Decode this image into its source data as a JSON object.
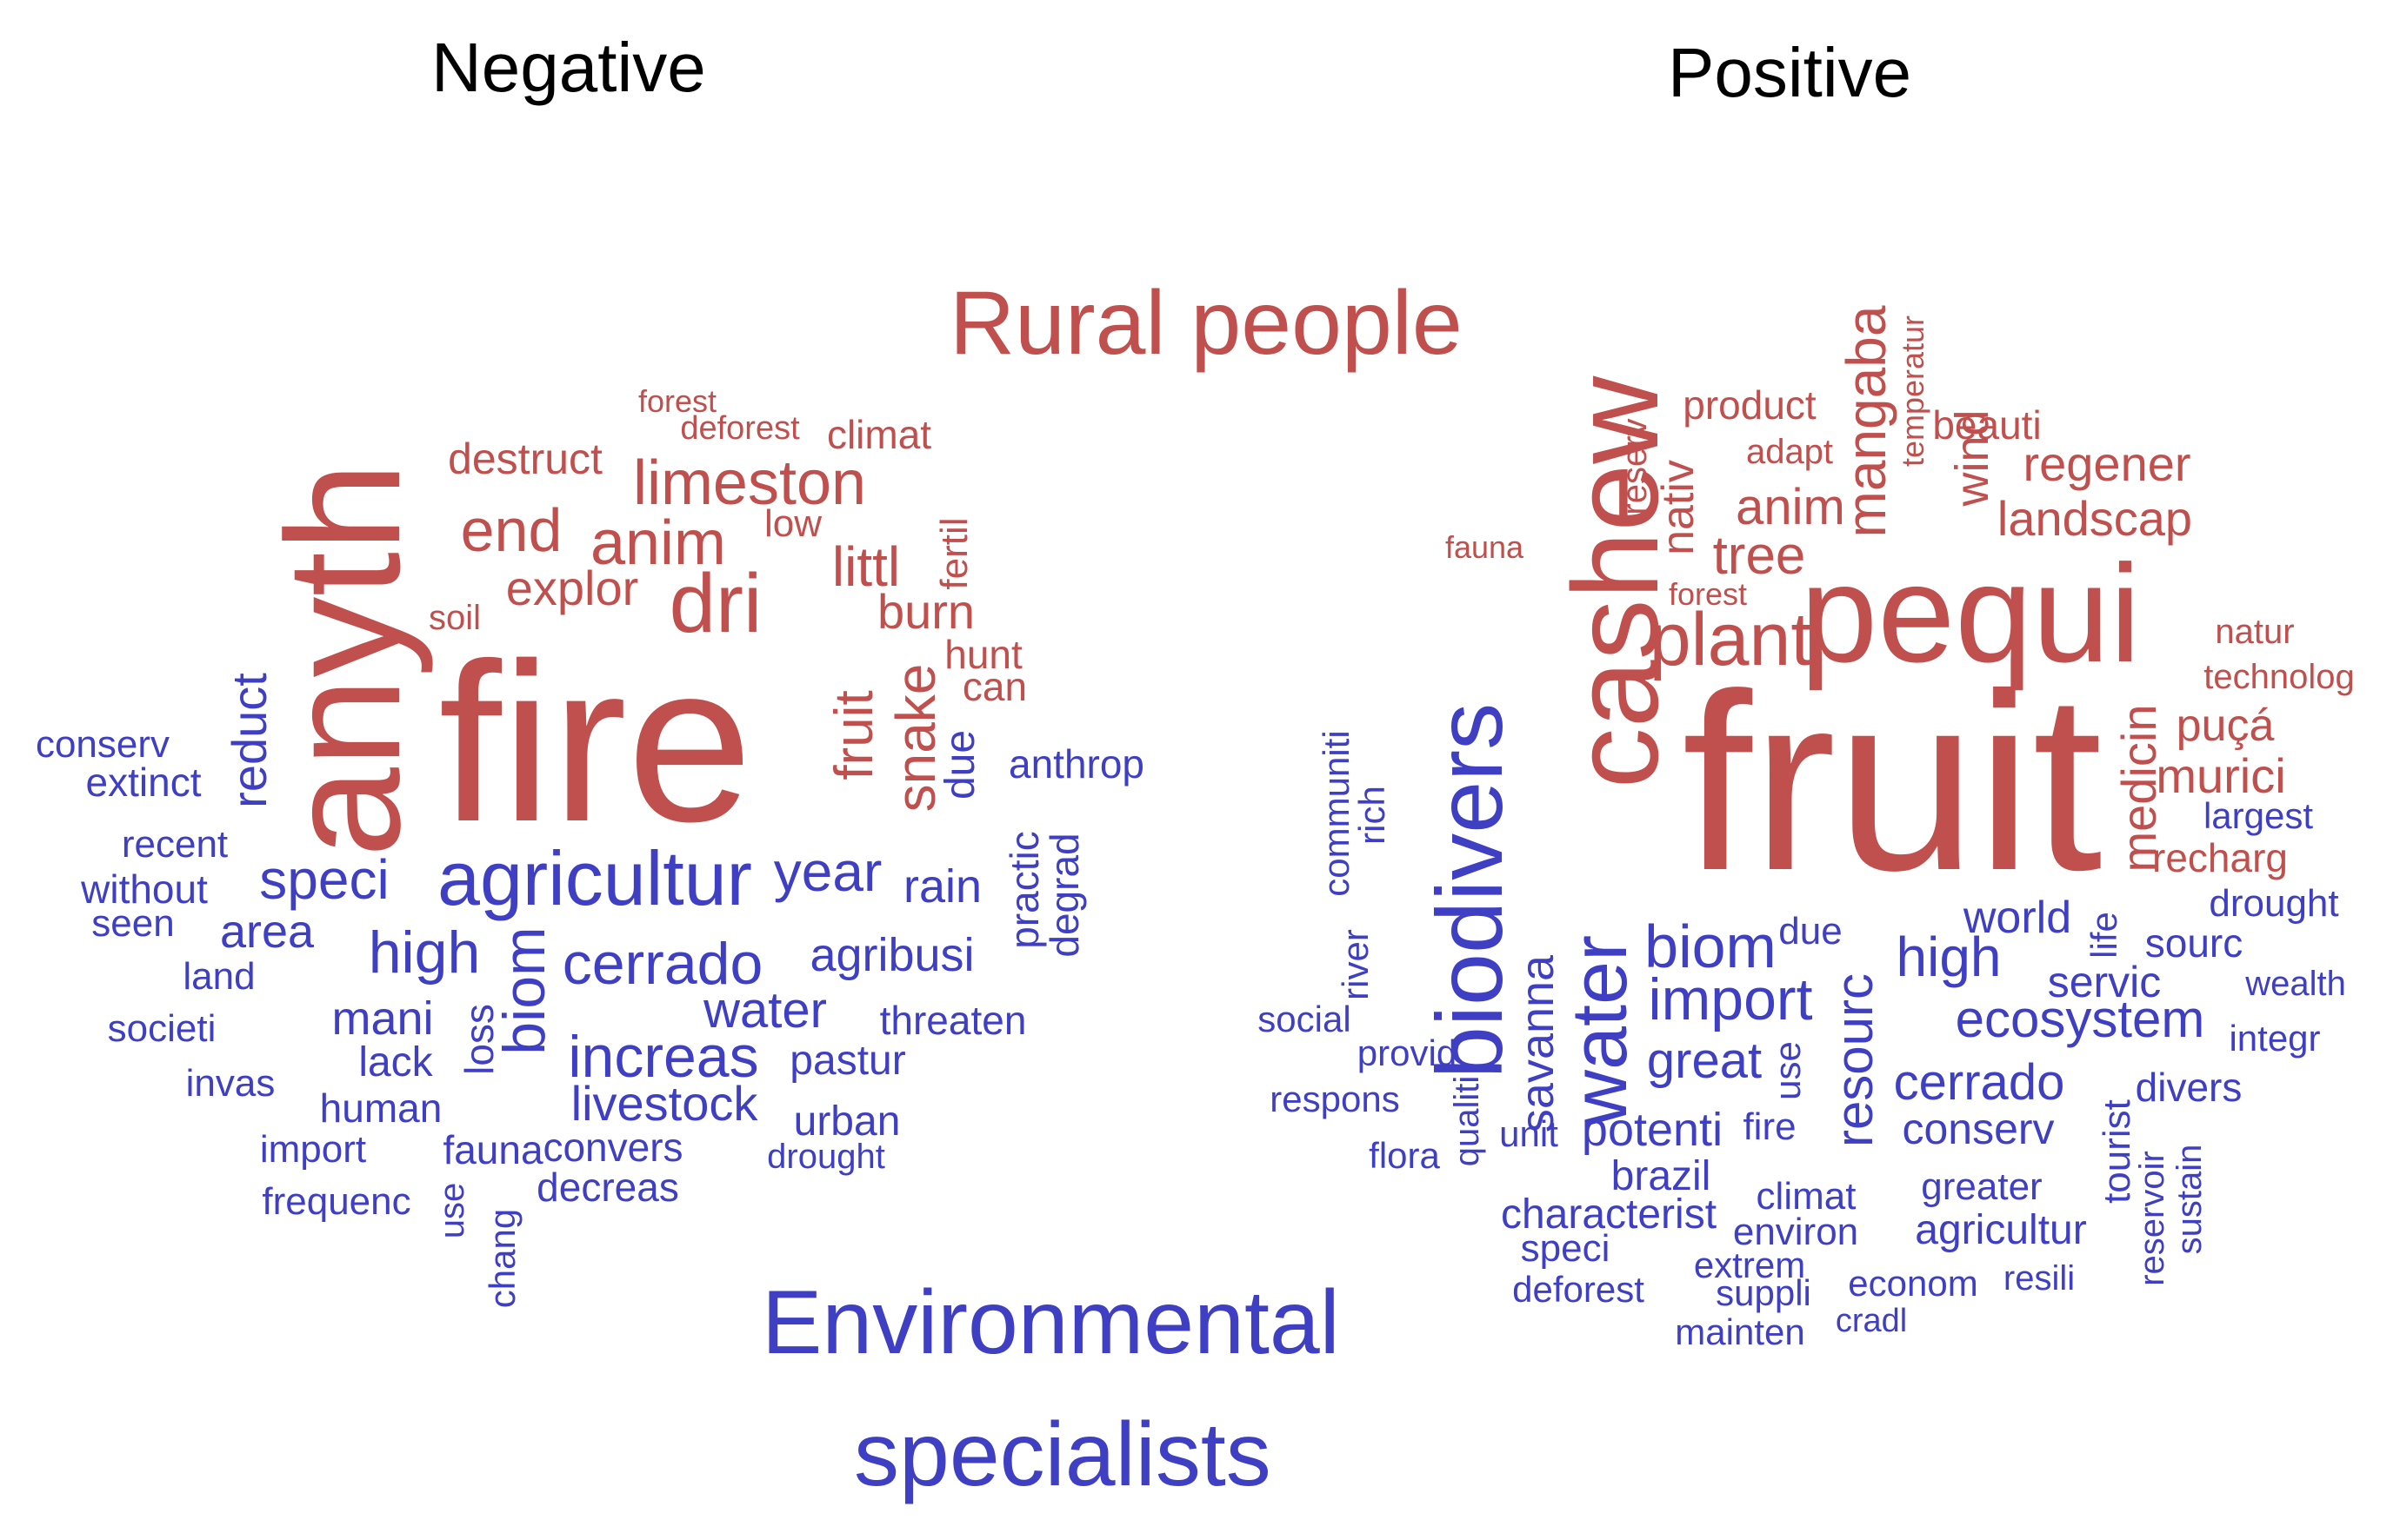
{
  "headings": {
    "negative": "Negative",
    "positive": "Positive"
  },
  "groups": {
    "rural": "Rural people",
    "env_line1": "Environmental",
    "env_line2": "specialists"
  },
  "colors": {
    "rural": "#c0504d",
    "env": "#3f3fc4",
    "heading": "#000000"
  },
  "words": {
    "negative": {
      "rural": [
        "forest",
        "deforest",
        "climat",
        "destruct",
        "limeston",
        "end",
        "anim",
        "low",
        "fertil",
        "littl",
        "explor",
        "dri",
        "burn",
        "soil",
        "hunt",
        "can",
        "anyth",
        "fire",
        "fruit",
        "snake"
      ],
      "env": [
        "conserv",
        "extinct",
        "reduct",
        "due",
        "anthrop",
        "recent",
        "without",
        "speci",
        "agricultur",
        "year",
        "rain",
        "practic",
        "degrad",
        "seen",
        "area",
        "high",
        "biom",
        "cerrado",
        "agribusi",
        "land",
        "mani",
        "loss",
        "water",
        "threaten",
        "societi",
        "lack",
        "increas",
        "pastur",
        "invas",
        "human",
        "livestock",
        "urban",
        "import",
        "fauna",
        "convers",
        "drought",
        "frequenc",
        "use",
        "decreas",
        "chang"
      ]
    },
    "positive": {
      "rural": [
        "product",
        "beauti",
        "mangaba",
        "temperatur",
        "reserv",
        "adapt",
        "regener",
        "wind",
        "nativ",
        "anim",
        "landscap",
        "fauna",
        "tree",
        "forest",
        "cashew",
        "plant",
        "pequi",
        "natur",
        "technolog",
        "fruit",
        "puçá",
        "medicin",
        "murici",
        "recharg"
      ],
      "env": [
        "communiti",
        "rich",
        "biodivers",
        "largest",
        "drought",
        "world",
        "life",
        "sourc",
        "river",
        "biom",
        "due",
        "high",
        "servic",
        "wealth",
        "social",
        "savanna",
        "water",
        "import",
        "ecosystem",
        "integr",
        "provid",
        "great",
        "use",
        "resourc",
        "cerrado",
        "divers",
        "respons",
        "qualiti",
        "unit",
        "potenti",
        "fire",
        "conserv",
        "tourist",
        "flora",
        "brazil",
        "climat",
        "greater",
        "reservoir",
        "characterist",
        "sustain",
        "environ",
        "agricultur",
        "speci",
        "extrem",
        "resili",
        "deforest",
        "suppli",
        "econom",
        "mainten",
        "cradl"
      ]
    }
  }
}
